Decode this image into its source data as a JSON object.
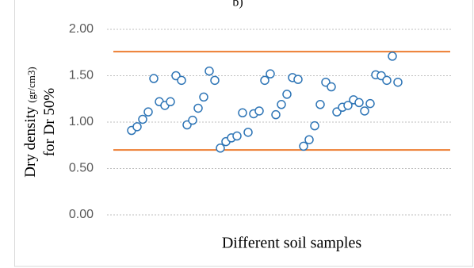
{
  "chart_data": {
    "type": "scatter",
    "title": "b)",
    "ylabel_lines": [
      "Dry density",
      "(gr/cm3)",
      "for Dr 50%"
    ],
    "xlabel": "Different soil samples",
    "categories": [
      null,
      null,
      null,
      null,
      null,
      null,
      null,
      null,
      null,
      null,
      null,
      null,
      null,
      null,
      null,
      null,
      null,
      null,
      null,
      null,
      null,
      null,
      null,
      null,
      null,
      null,
      null,
      null,
      null,
      null,
      null,
      null,
      null,
      null,
      null,
      null,
      null,
      null,
      null,
      null,
      null,
      null,
      null,
      null,
      null,
      null,
      null,
      null,
      null
    ],
    "values": [
      0.91,
      0.95,
      1.03,
      1.11,
      1.47,
      1.22,
      1.18,
      1.22,
      1.5,
      1.45,
      0.97,
      1.02,
      1.15,
      1.27,
      1.55,
      1.45,
      0.72,
      0.79,
      0.83,
      0.85,
      1.1,
      0.89,
      1.09,
      1.12,
      1.45,
      1.52,
      1.08,
      1.19,
      1.3,
      1.48,
      1.46,
      0.74,
      0.81,
      0.96,
      1.19,
      1.43,
      1.38,
      1.11,
      1.16,
      1.18,
      1.24,
      1.21,
      1.12,
      1.2,
      1.51,
      1.5,
      1.45,
      1.71,
      1.43
    ],
    "color": "#2e75b6",
    "reference_lines": [
      {
        "value": 1.76,
        "color": "#ed7d31"
      },
      {
        "value": 0.7,
        "color": "#ed7d31"
      }
    ],
    "ylim": [
      0,
      2
    ],
    "yticks": [
      {
        "value": 0,
        "label": "0.00"
      },
      {
        "value": 0.5,
        "label": "0.50"
      },
      {
        "value": 1,
        "label": "1.00"
      },
      {
        "value": 1.5,
        "label": "1.50"
      },
      {
        "value": 2,
        "label": "2.00"
      }
    ],
    "grid": true
  }
}
